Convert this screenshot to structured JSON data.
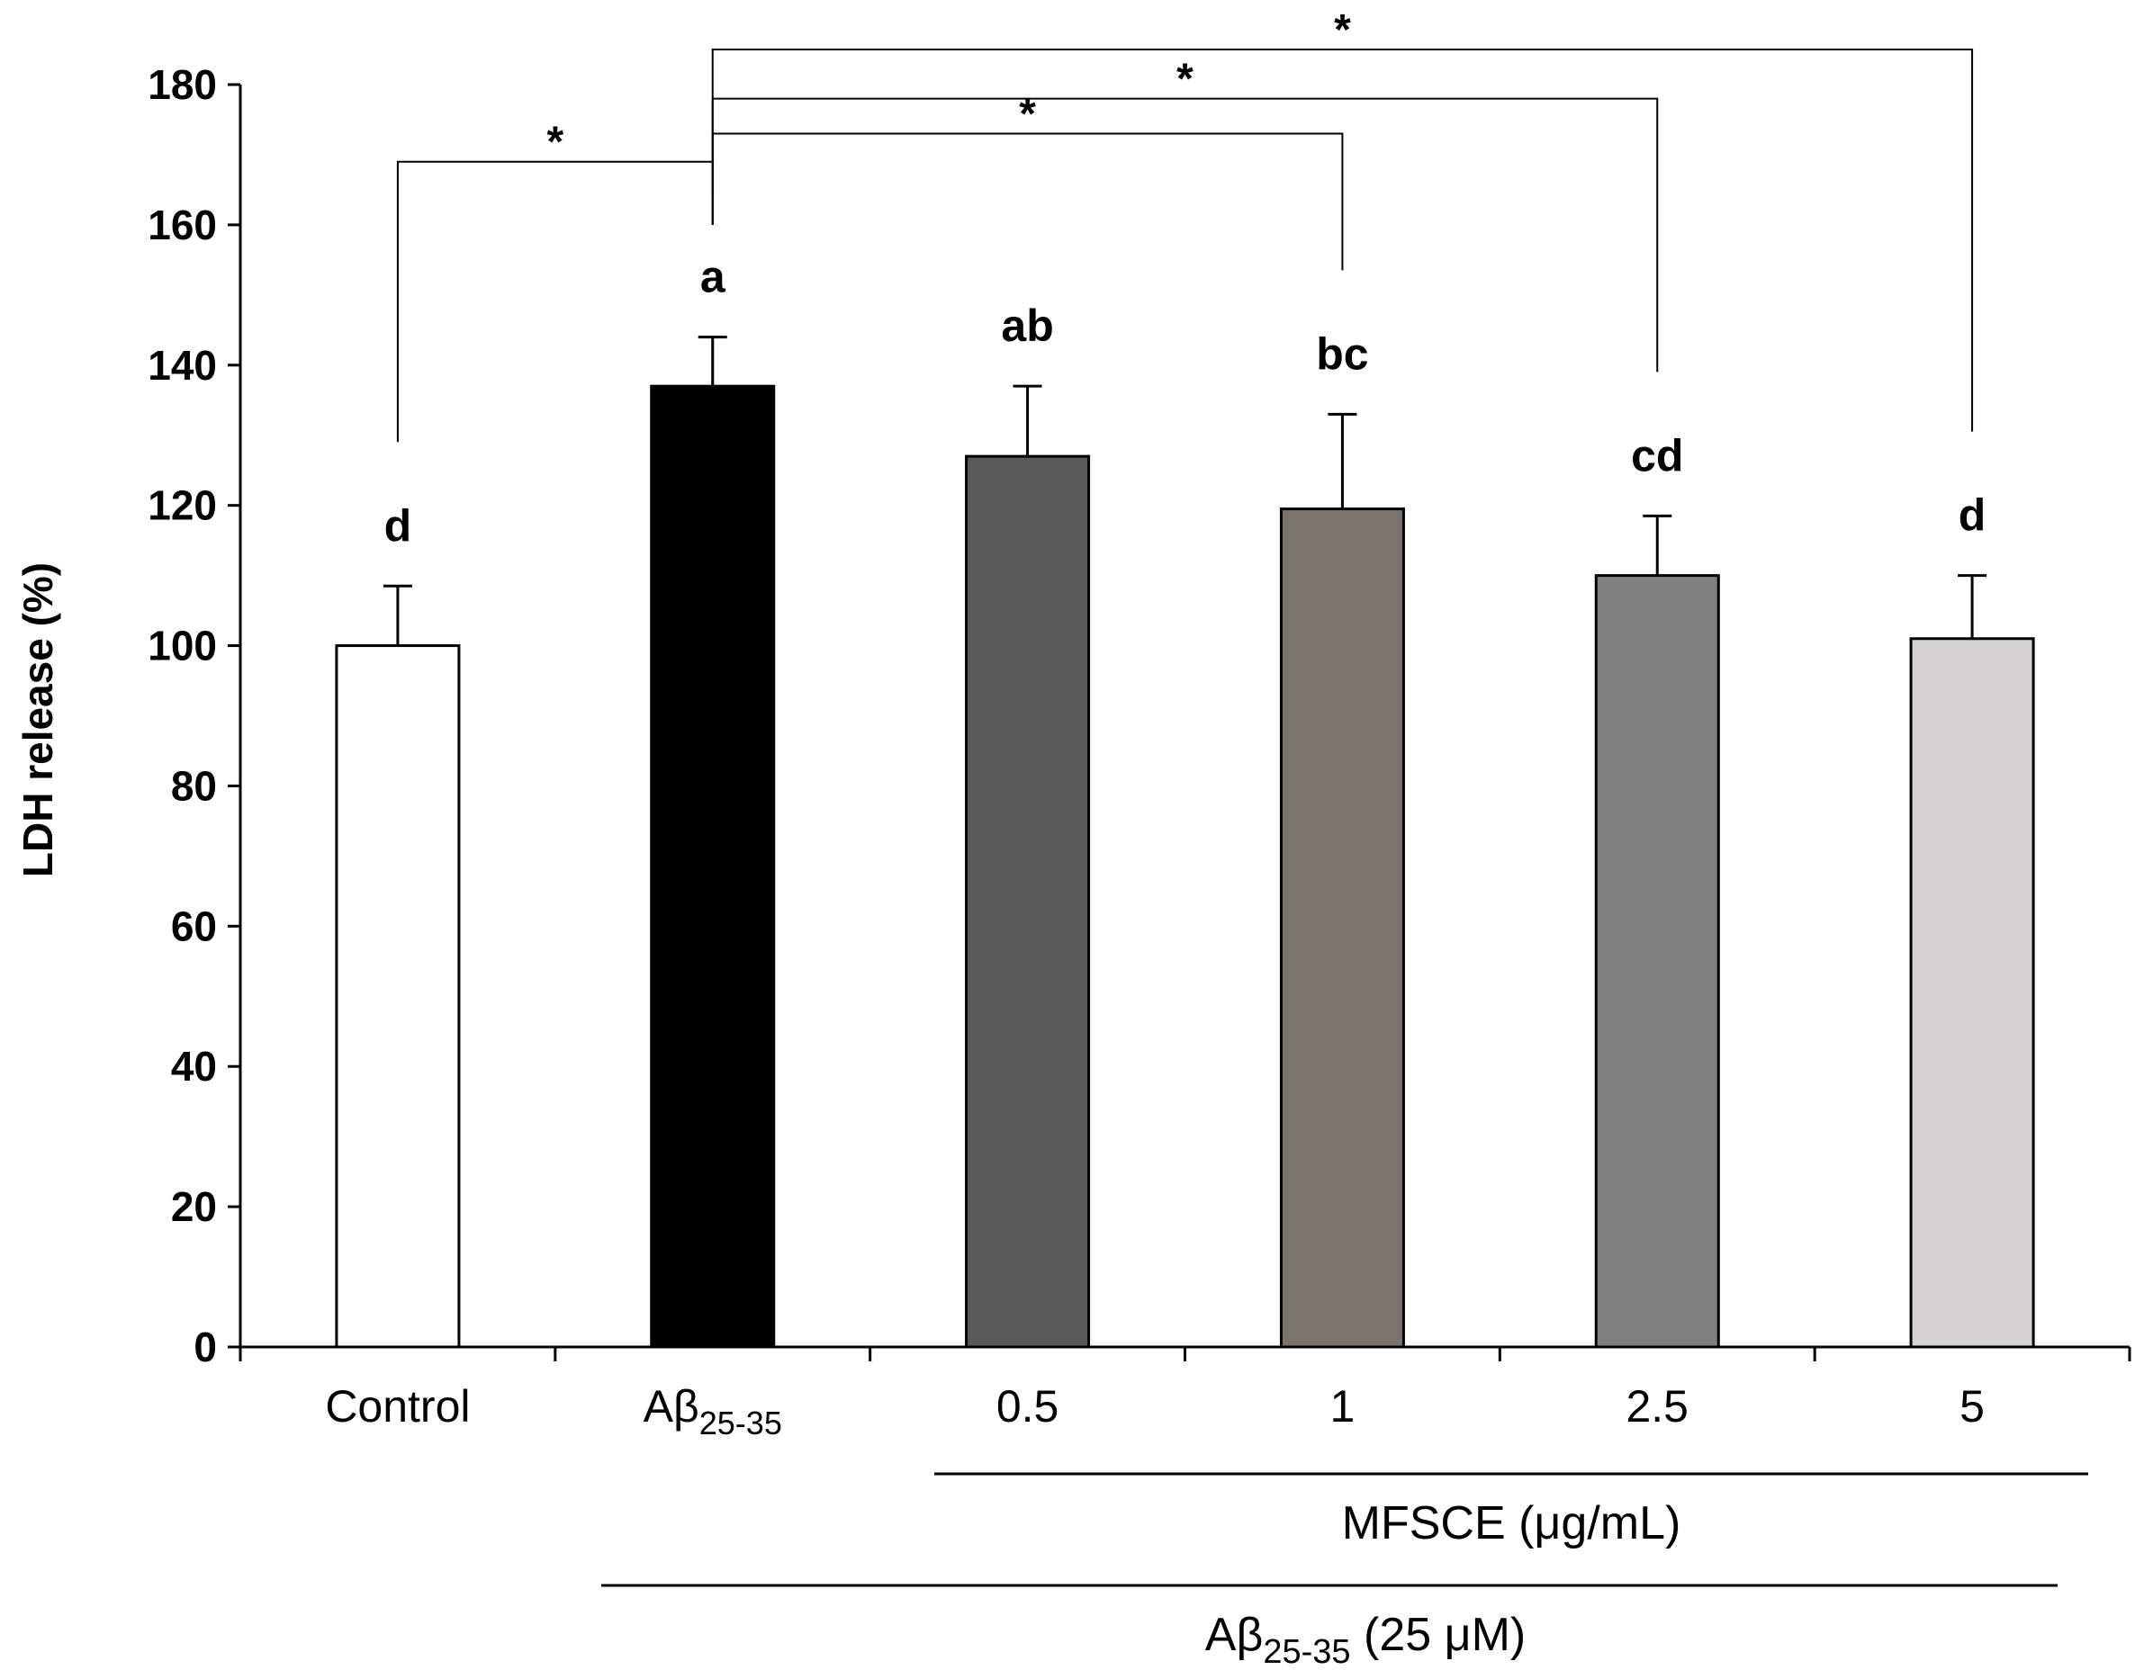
{
  "chart_data": {
    "type": "bar",
    "title": "",
    "ylabel": "LDH release (%)",
    "ylim": [
      0,
      180
    ],
    "yticks": [
      0,
      20,
      40,
      60,
      80,
      100,
      120,
      140,
      160,
      180
    ],
    "grid": false,
    "categories": [
      {
        "main": "Control",
        "sub": ""
      },
      {
        "main": "Aβ",
        "sub": "25-35"
      },
      {
        "main": "0.5",
        "sub": ""
      },
      {
        "main": "1",
        "sub": ""
      },
      {
        "main": "2.5",
        "sub": ""
      },
      {
        "main": "5",
        "sub": ""
      }
    ],
    "values": [
      100,
      137,
      127,
      119.5,
      110,
      101
    ],
    "errors": [
      8.5,
      7,
      10,
      13.5,
      8.5,
      9
    ],
    "letters": [
      "d",
      "a",
      "ab",
      "bc",
      "cd",
      "d"
    ],
    "bar_colors": [
      "#ffffff",
      "#000000",
      "#595959",
      "#7a7471",
      "#808080",
      "#d4d2d3"
    ],
    "significance": [
      {
        "from": 0,
        "to": 1,
        "y": 169,
        "label": "*"
      },
      {
        "from": 1,
        "to": 3,
        "y": 173,
        "label": "*"
      },
      {
        "from": 1,
        "to": 4,
        "y": 178,
        "label": "*"
      },
      {
        "from": 1,
        "to": 5,
        "y": 185,
        "label": "*"
      }
    ],
    "groups": [
      {
        "label": "MFSCE (μg/mL)",
        "label_sub": "",
        "label_after": "",
        "from": 2,
        "to": 5
      },
      {
        "label": "Aβ",
        "label_sub": "25-35",
        "label_after": " (25 μM)",
        "from": 1,
        "to": 5
      }
    ]
  }
}
